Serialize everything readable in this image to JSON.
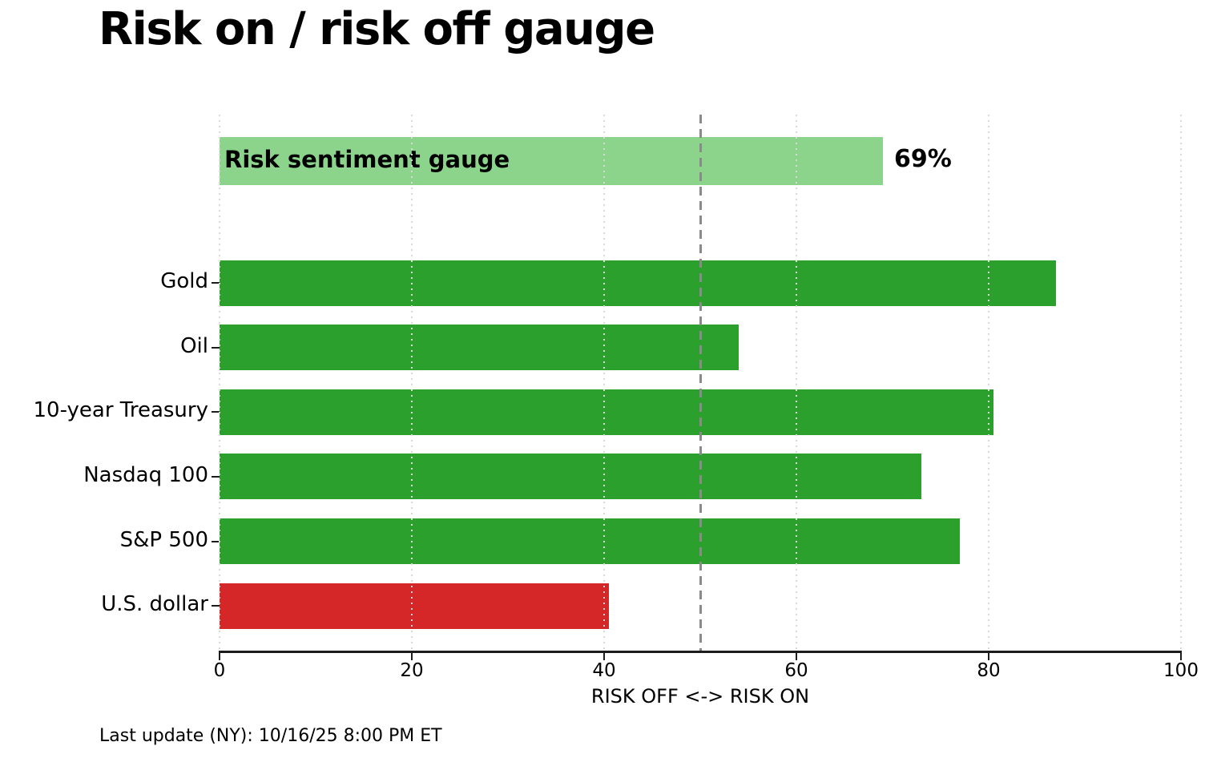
{
  "title": "Risk on / risk off gauge",
  "footer": "Last update (NY): 10/16/25 8:00 PM ET",
  "colors": {
    "risk_on_green": "#2ca02c",
    "risk_off_red": "#d62728",
    "gauge_light_green": "#8cd38c",
    "gridline": "#d9d9d9",
    "midline_gray": "#8a8a8a",
    "axis": "#1c1c1c"
  },
  "chart_data": {
    "type": "bar",
    "orientation": "horizontal",
    "title": "Risk on / risk off gauge",
    "xlabel": "RISK OFF <-> RISK ON",
    "ylabel": "",
    "xlim": [
      0,
      100
    ],
    "xticks": [
      0,
      20,
      40,
      60,
      80,
      100
    ],
    "grid": "vertical dotted at each xtick",
    "midline_x": 50,
    "gauge": {
      "label": "Risk sentiment gauge",
      "value": 69,
      "value_label": "69%",
      "color": "#8cd38c"
    },
    "categories": [
      "Gold",
      "Oil",
      "10-year Treasury",
      "Nasdaq 100",
      "S&P 500",
      "U.S. dollar"
    ],
    "values": [
      87,
      54,
      80.5,
      73,
      77,
      40.5
    ],
    "bar_colors": [
      "#2ca02c",
      "#2ca02c",
      "#2ca02c",
      "#2ca02c",
      "#2ca02c",
      "#d62728"
    ]
  }
}
